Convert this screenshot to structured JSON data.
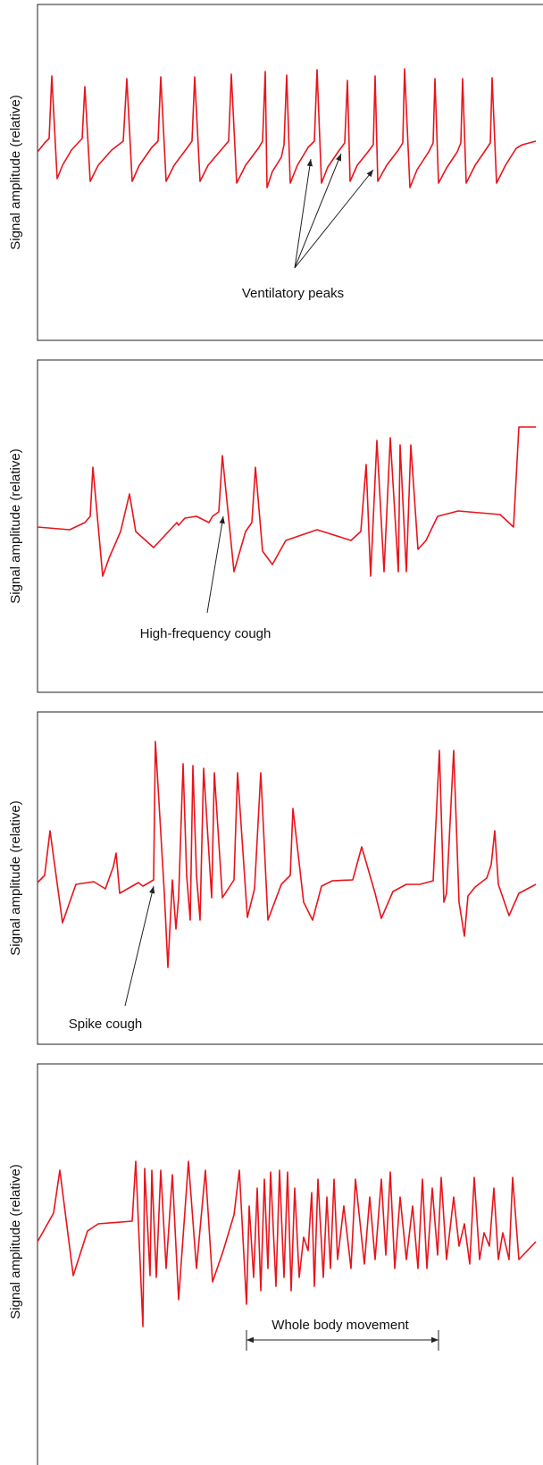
{
  "panels": [
    {
      "y_label": "Signal amplitude (relative)",
      "annotation": "Ventilatory peaks"
    },
    {
      "y_label": "Signal amplitude (relative)",
      "annotation": "High-frequency cough"
    },
    {
      "y_label": "Signal amplitude (relative)",
      "annotation": "Spike cough"
    },
    {
      "y_label": "Signal amplitude (relative)",
      "annotation": "Whole body movement"
    }
  ]
}
